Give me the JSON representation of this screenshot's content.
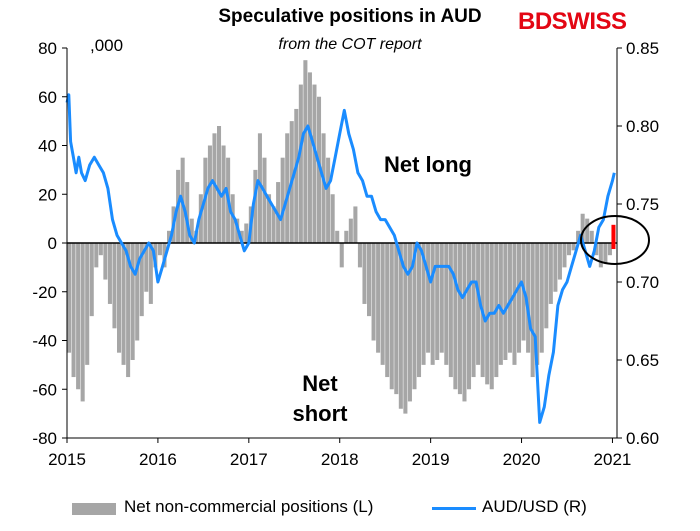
{
  "header": {
    "title": "Speculative positions in AUD",
    "subtitle": "from the COT report",
    "logo": {
      "part1": "BD",
      "part2": "SWISS"
    },
    "units": ",000"
  },
  "annotations": {
    "long": "Net long",
    "short_line1": "Net",
    "short_line2": "short"
  },
  "legend": {
    "left_series": "Net non-commercial positions (L)",
    "right_series": "AUD/USD (R)"
  },
  "colors": {
    "bars": "#a6a6a6",
    "line": "#1a8cff",
    "latest_bar": "#ff0000",
    "logo": "#e30613"
  },
  "chart_data": {
    "type": "bar+line",
    "title": "Speculative positions in AUD",
    "subtitle": "from the COT report",
    "x_ticks": [
      "2015",
      "2016",
      "2017",
      "2018",
      "2019",
      "2020",
      "2021"
    ],
    "left_axis": {
      "unit": ",000",
      "min": -80,
      "max": 80,
      "ticks": [
        "80",
        "60",
        "40",
        "20",
        "0",
        "-20",
        "-40",
        "-60",
        "-80"
      ]
    },
    "right_axis": {
      "min": 0.6,
      "max": 0.85,
      "ticks": [
        "0.85",
        "0.80",
        "0.75",
        "0.70",
        "0.65",
        "0.60"
      ]
    },
    "bar_series": {
      "name": "Net non-commercial positions (L)",
      "axis": "left",
      "points": [
        [
          2015.0,
          -45
        ],
        [
          2015.05,
          -55
        ],
        [
          2015.1,
          -60
        ],
        [
          2015.15,
          -65
        ],
        [
          2015.2,
          -50
        ],
        [
          2015.25,
          -30
        ],
        [
          2015.3,
          -10
        ],
        [
          2015.35,
          -5
        ],
        [
          2015.4,
          -15
        ],
        [
          2015.45,
          -25
        ],
        [
          2015.5,
          -35
        ],
        [
          2015.55,
          -45
        ],
        [
          2015.6,
          -50
        ],
        [
          2015.65,
          -55
        ],
        [
          2015.7,
          -48
        ],
        [
          2015.75,
          -40
        ],
        [
          2015.8,
          -30
        ],
        [
          2015.85,
          -20
        ],
        [
          2015.9,
          -25
        ],
        [
          2015.95,
          -10
        ],
        [
          2016.0,
          -5
        ],
        [
          2016.05,
          -10
        ],
        [
          2016.1,
          5
        ],
        [
          2016.15,
          15
        ],
        [
          2016.2,
          30
        ],
        [
          2016.25,
          35
        ],
        [
          2016.3,
          25
        ],
        [
          2016.35,
          10
        ],
        [
          2016.4,
          5
        ],
        [
          2016.45,
          20
        ],
        [
          2016.5,
          35
        ],
        [
          2016.55,
          40
        ],
        [
          2016.6,
          45
        ],
        [
          2016.65,
          48
        ],
        [
          2016.7,
          40
        ],
        [
          2016.75,
          35
        ],
        [
          2016.8,
          20
        ],
        [
          2016.85,
          10
        ],
        [
          2016.9,
          5
        ],
        [
          2016.95,
          8
        ],
        [
          2017.0,
          15
        ],
        [
          2017.05,
          30
        ],
        [
          2017.1,
          45
        ],
        [
          2017.15,
          35
        ],
        [
          2017.2,
          20
        ],
        [
          2017.25,
          15
        ],
        [
          2017.3,
          25
        ],
        [
          2017.35,
          35
        ],
        [
          2017.4,
          45
        ],
        [
          2017.45,
          50
        ],
        [
          2017.5,
          55
        ],
        [
          2017.55,
          65
        ],
        [
          2017.6,
          75
        ],
        [
          2017.65,
          70
        ],
        [
          2017.7,
          65
        ],
        [
          2017.75,
          60
        ],
        [
          2017.8,
          45
        ],
        [
          2017.85,
          35
        ],
        [
          2017.9,
          20
        ],
        [
          2017.95,
          5
        ],
        [
          2018.0,
          -10
        ],
        [
          2018.05,
          5
        ],
        [
          2018.1,
          10
        ],
        [
          2018.15,
          15
        ],
        [
          2018.2,
          -10
        ],
        [
          2018.25,
          -25
        ],
        [
          2018.3,
          -30
        ],
        [
          2018.35,
          -40
        ],
        [
          2018.4,
          -45
        ],
        [
          2018.45,
          -50
        ],
        [
          2018.5,
          -55
        ],
        [
          2018.55,
          -60
        ],
        [
          2018.6,
          -62
        ],
        [
          2018.65,
          -68
        ],
        [
          2018.7,
          -70
        ],
        [
          2018.75,
          -65
        ],
        [
          2018.8,
          -60
        ],
        [
          2018.85,
          -55
        ],
        [
          2018.9,
          -50
        ],
        [
          2018.95,
          -45
        ],
        [
          2019.0,
          -50
        ],
        [
          2019.05,
          -48
        ],
        [
          2019.1,
          -45
        ],
        [
          2019.15,
          -50
        ],
        [
          2019.2,
          -55
        ],
        [
          2019.25,
          -60
        ],
        [
          2019.3,
          -62
        ],
        [
          2019.35,
          -65
        ],
        [
          2019.4,
          -60
        ],
        [
          2019.45,
          -55
        ],
        [
          2019.5,
          -50
        ],
        [
          2019.55,
          -55
        ],
        [
          2019.6,
          -58
        ],
        [
          2019.65,
          -60
        ],
        [
          2019.7,
          -55
        ],
        [
          2019.75,
          -50
        ],
        [
          2019.8,
          -48
        ],
        [
          2019.85,
          -45
        ],
        [
          2019.9,
          -50
        ],
        [
          2019.95,
          -45
        ],
        [
          2020.0,
          -40
        ],
        [
          2020.05,
          -45
        ],
        [
          2020.1,
          -55
        ],
        [
          2020.15,
          -50
        ],
        [
          2020.2,
          -45
        ],
        [
          2020.25,
          -35
        ],
        [
          2020.3,
          -25
        ],
        [
          2020.35,
          -20
        ],
        [
          2020.4,
          -15
        ],
        [
          2020.45,
          -10
        ],
        [
          2020.5,
          -5
        ],
        [
          2020.55,
          -3
        ],
        [
          2020.6,
          5
        ],
        [
          2020.65,
          12
        ],
        [
          2020.7,
          10
        ],
        [
          2020.75,
          5
        ],
        [
          2020.8,
          -5
        ],
        [
          2020.85,
          -10
        ],
        [
          2020.9,
          -8
        ],
        [
          2020.95,
          -5
        ]
      ],
      "latest": {
        "x": 2021.0,
        "y": 5
      }
    },
    "line_series": {
      "name": "AUD/USD (R)",
      "axis": "right",
      "points": [
        [
          2015.0,
          0.815
        ],
        [
          2015.02,
          0.82
        ],
        [
          2015.04,
          0.79
        ],
        [
          2015.07,
          0.78
        ],
        [
          2015.1,
          0.77
        ],
        [
          2015.13,
          0.78
        ],
        [
          2015.16,
          0.77
        ],
        [
          2015.2,
          0.765
        ],
        [
          2015.25,
          0.775
        ],
        [
          2015.3,
          0.78
        ],
        [
          2015.35,
          0.775
        ],
        [
          2015.4,
          0.77
        ],
        [
          2015.45,
          0.76
        ],
        [
          2015.5,
          0.74
        ],
        [
          2015.55,
          0.73
        ],
        [
          2015.6,
          0.725
        ],
        [
          2015.65,
          0.72
        ],
        [
          2015.7,
          0.71
        ],
        [
          2015.75,
          0.705
        ],
        [
          2015.8,
          0.715
        ],
        [
          2015.85,
          0.72
        ],
        [
          2015.9,
          0.725
        ],
        [
          2015.95,
          0.72
        ],
        [
          2016.0,
          0.7
        ],
        [
          2016.05,
          0.71
        ],
        [
          2016.1,
          0.72
        ],
        [
          2016.15,
          0.73
        ],
        [
          2016.2,
          0.745
        ],
        [
          2016.25,
          0.755
        ],
        [
          2016.3,
          0.745
        ],
        [
          2016.35,
          0.73
        ],
        [
          2016.4,
          0.725
        ],
        [
          2016.45,
          0.74
        ],
        [
          2016.5,
          0.75
        ],
        [
          2016.55,
          0.76
        ],
        [
          2016.6,
          0.765
        ],
        [
          2016.65,
          0.76
        ],
        [
          2016.7,
          0.755
        ],
        [
          2016.75,
          0.76
        ],
        [
          2016.8,
          0.745
        ],
        [
          2016.85,
          0.74
        ],
        [
          2016.9,
          0.73
        ],
        [
          2016.95,
          0.72
        ],
        [
          2017.0,
          0.725
        ],
        [
          2017.05,
          0.75
        ],
        [
          2017.1,
          0.765
        ],
        [
          2017.15,
          0.76
        ],
        [
          2017.2,
          0.755
        ],
        [
          2017.25,
          0.75
        ],
        [
          2017.3,
          0.745
        ],
        [
          2017.35,
          0.74
        ],
        [
          2017.4,
          0.75
        ],
        [
          2017.45,
          0.76
        ],
        [
          2017.5,
          0.77
        ],
        [
          2017.55,
          0.78
        ],
        [
          2017.6,
          0.795
        ],
        [
          2017.65,
          0.8
        ],
        [
          2017.7,
          0.79
        ],
        [
          2017.75,
          0.78
        ],
        [
          2017.8,
          0.77
        ],
        [
          2017.85,
          0.76
        ],
        [
          2017.9,
          0.765
        ],
        [
          2017.95,
          0.78
        ],
        [
          2018.0,
          0.795
        ],
        [
          2018.05,
          0.81
        ],
        [
          2018.1,
          0.795
        ],
        [
          2018.15,
          0.785
        ],
        [
          2018.2,
          0.77
        ],
        [
          2018.25,
          0.765
        ],
        [
          2018.3,
          0.755
        ],
        [
          2018.35,
          0.755
        ],
        [
          2018.4,
          0.745
        ],
        [
          2018.45,
          0.74
        ],
        [
          2018.5,
          0.74
        ],
        [
          2018.55,
          0.735
        ],
        [
          2018.6,
          0.73
        ],
        [
          2018.65,
          0.72
        ],
        [
          2018.7,
          0.71
        ],
        [
          2018.75,
          0.705
        ],
        [
          2018.8,
          0.71
        ],
        [
          2018.85,
          0.725
        ],
        [
          2018.9,
          0.72
        ],
        [
          2018.95,
          0.71
        ],
        [
          2019.0,
          0.7
        ],
        [
          2019.05,
          0.71
        ],
        [
          2019.1,
          0.71
        ],
        [
          2019.15,
          0.71
        ],
        [
          2019.2,
          0.71
        ],
        [
          2019.25,
          0.705
        ],
        [
          2019.3,
          0.695
        ],
        [
          2019.35,
          0.69
        ],
        [
          2019.4,
          0.695
        ],
        [
          2019.45,
          0.7
        ],
        [
          2019.5,
          0.7
        ],
        [
          2019.55,
          0.685
        ],
        [
          2019.6,
          0.675
        ],
        [
          2019.65,
          0.68
        ],
        [
          2019.7,
          0.68
        ],
        [
          2019.75,
          0.685
        ],
        [
          2019.8,
          0.68
        ],
        [
          2019.85,
          0.685
        ],
        [
          2019.9,
          0.69
        ],
        [
          2019.95,
          0.695
        ],
        [
          2020.0,
          0.7
        ],
        [
          2020.05,
          0.69
        ],
        [
          2020.1,
          0.67
        ],
        [
          2020.15,
          0.665
        ],
        [
          2020.2,
          0.61
        ],
        [
          2020.25,
          0.62
        ],
        [
          2020.3,
          0.64
        ],
        [
          2020.35,
          0.655
        ],
        [
          2020.4,
          0.685
        ],
        [
          2020.45,
          0.695
        ],
        [
          2020.5,
          0.7
        ],
        [
          2020.55,
          0.71
        ],
        [
          2020.6,
          0.72
        ],
        [
          2020.65,
          0.73
        ],
        [
          2020.7,
          0.72
        ],
        [
          2020.75,
          0.71
        ],
        [
          2020.8,
          0.72
        ],
        [
          2020.85,
          0.735
        ],
        [
          2020.9,
          0.74
        ],
        [
          2020.95,
          0.755
        ],
        [
          2021.0,
          0.765
        ],
        [
          2021.02,
          0.77
        ]
      ]
    }
  }
}
